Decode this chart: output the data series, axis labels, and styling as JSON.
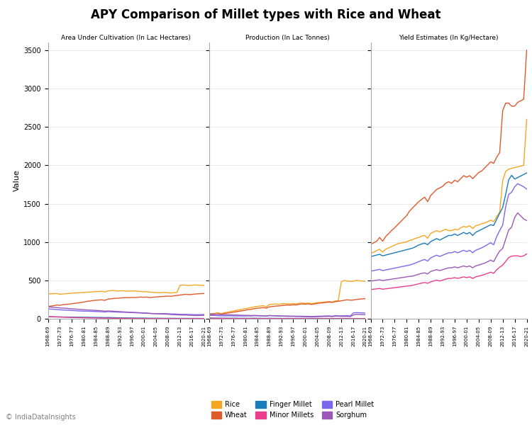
{
  "title": "APY Comparison of Millet types with Rice and Wheat",
  "subtitle_left": "Area Under Cultivation (In Lac Hectares)",
  "subtitle_mid": "Production (In Lac Tonnes)",
  "subtitle_right": "Yield Estimates (In Kg/Hectare)",
  "ylabel": "Value",
  "copyright": "© IndiaDataInsights",
  "series_colors": {
    "Rice": "#F5A623",
    "Wheat": "#E05A2B",
    "Finger Millet": "#1A7BB9",
    "Minor Millets": "#E83E8C",
    "Pearl Millet": "#7B68EE",
    "Sorghum": "#9B59B6"
  },
  "area": {
    "Rice": [
      323,
      325,
      328,
      328,
      319,
      323,
      327,
      330,
      333,
      336,
      339,
      341,
      343,
      346,
      348,
      351,
      354,
      356,
      358,
      349,
      363,
      366,
      369,
      361,
      363,
      365,
      361,
      359,
      363,
      361,
      359,
      355,
      351,
      353,
      347,
      345,
      341,
      339,
      341,
      343,
      339,
      336,
      341,
      343,
      435,
      441,
      437,
      433,
      436,
      441,
      438,
      436,
      434
    ],
    "Wheat": [
      160,
      165,
      171,
      179,
      175,
      183,
      187,
      191,
      197,
      201,
      206,
      212,
      218,
      227,
      231,
      237,
      241,
      244,
      246,
      240,
      255,
      260,
      265,
      267,
      270,
      274,
      276,
      274,
      278,
      276,
      280,
      283,
      280,
      283,
      276,
      280,
      285,
      287,
      289,
      292,
      295,
      293,
      299,
      303,
      309,
      314,
      319,
      315,
      317,
      322,
      325,
      327,
      329
    ],
    "Finger Millet": [
      26,
      25,
      24,
      24,
      24,
      23,
      22,
      22,
      21,
      21,
      20,
      20,
      19,
      19,
      18,
      18,
      17,
      17,
      16,
      15,
      16,
      15,
      14,
      13,
      12,
      11,
      11,
      10,
      10,
      9,
      9,
      9,
      9,
      8,
      7,
      7,
      7,
      7,
      6,
      6,
      6,
      6,
      6,
      5,
      5,
      5,
      5,
      5,
      5,
      5,
      5,
      4,
      4
    ],
    "Minor Millets": [
      30,
      28,
      26,
      24,
      22,
      21,
      20,
      18,
      17,
      16,
      15,
      14,
      13,
      12,
      11,
      10,
      9,
      9,
      8,
      8,
      8,
      7,
      7,
      6,
      6,
      5,
      5,
      5,
      4,
      4,
      4,
      3,
      3,
      3,
      3,
      3,
      3,
      3,
      2,
      2,
      2,
      2,
      2,
      2,
      2,
      2,
      2,
      2,
      2,
      2,
      2,
      2,
      2
    ],
    "Pearl Millet": [
      128,
      126,
      123,
      119,
      117,
      114,
      112,
      110,
      108,
      105,
      103,
      101,
      99,
      99,
      97,
      96,
      94,
      93,
      91,
      88,
      93,
      91,
      89,
      87,
      86,
      84,
      84,
      82,
      80,
      79,
      77,
      75,
      73,
      71,
      69,
      67,
      67,
      65,
      67,
      67,
      65,
      63,
      62,
      60,
      58,
      58,
      58,
      56,
      55,
      53,
      53,
      54,
      56
    ],
    "Sorghum": [
      155,
      152,
      149,
      146,
      141,
      139,
      137,
      132,
      130,
      127,
      124,
      121,
      118,
      115,
      113,
      111,
      109,
      106,
      104,
      99,
      102,
      100,
      98,
      95,
      93,
      90,
      88,
      86,
      84,
      82,
      80,
      78,
      76,
      74,
      70,
      68,
      66,
      64,
      62,
      60,
      59,
      55,
      53,
      51,
      49,
      48,
      48,
      46,
      44,
      42,
      42,
      43,
      44
    ]
  },
  "production": {
    "Rice": [
      60,
      65,
      72,
      79,
      65,
      79,
      85,
      94,
      100,
      109,
      115,
      124,
      131,
      140,
      146,
      155,
      161,
      165,
      170,
      156,
      184,
      188,
      193,
      188,
      193,
      198,
      194,
      192,
      198,
      194,
      201,
      205,
      200,
      205,
      195,
      204,
      210,
      212,
      216,
      222,
      224,
      218,
      232,
      236,
      480,
      500,
      492,
      487,
      490,
      500,
      495,
      491,
      489
    ],
    "Wheat": [
      45,
      50,
      57,
      65,
      59,
      68,
      73,
      79,
      84,
      92,
      98,
      104,
      110,
      119,
      124,
      131,
      137,
      140,
      146,
      138,
      155,
      159,
      165,
      167,
      171,
      175,
      179,
      177,
      183,
      180,
      188,
      194,
      190,
      194,
      187,
      192,
      200,
      204,
      208,
      213,
      217,
      213,
      223,
      228,
      234,
      241,
      247,
      242,
      244,
      251,
      255,
      259,
      263
    ],
    "Finger Millet": [
      10,
      9,
      8,
      8,
      7,
      7,
      7,
      7,
      7,
      7,
      6,
      6,
      6,
      6,
      6,
      7,
      6,
      6,
      5,
      5,
      6,
      6,
      5,
      5,
      5,
      4,
      5,
      4,
      4,
      4,
      4,
      4,
      4,
      4,
      3,
      4,
      4,
      3,
      3,
      4,
      3,
      3,
      4,
      4,
      4,
      4,
      4,
      3,
      3,
      3,
      3,
      3,
      3
    ],
    "Minor Millets": [
      5,
      5,
      4,
      4,
      4,
      4,
      3,
      3,
      3,
      3,
      3,
      3,
      2,
      2,
      2,
      2,
      2,
      2,
      2,
      2,
      2,
      2,
      2,
      1,
      1,
      1,
      1,
      1,
      1,
      1,
      1,
      1,
      1,
      1,
      1,
      1,
      1,
      1,
      1,
      1,
      1,
      1,
      1,
      1,
      1,
      1,
      1,
      1,
      1,
      1,
      1,
      1,
      1
    ],
    "Pearl Millet": [
      45,
      44,
      42,
      40,
      38,
      38,
      37,
      39,
      37,
      37,
      36,
      36,
      36,
      38,
      36,
      40,
      38,
      38,
      36,
      34,
      42,
      40,
      39,
      37,
      37,
      35,
      36,
      34,
      35,
      33,
      33,
      33,
      31,
      31,
      29,
      31,
      33,
      33,
      35,
      37,
      37,
      33,
      41,
      38,
      38,
      38,
      41,
      36,
      75,
      80,
      78,
      76,
      74
    ],
    "Sorghum": [
      65,
      63,
      60,
      57,
      54,
      54,
      51,
      51,
      49,
      49,
      47,
      45,
      44,
      44,
      42,
      44,
      42,
      40,
      38,
      36,
      42,
      40,
      38,
      36,
      35,
      33,
      32,
      31,
      31,
      29,
      29,
      27,
      27,
      25,
      23,
      25,
      27,
      27,
      29,
      31,
      31,
      27,
      35,
      33,
      31,
      31,
      31,
      27,
      48,
      58,
      56,
      54,
      53
    ]
  },
  "yield": {
    "Rice": [
      850,
      868,
      887,
      906,
      868,
      906,
      924,
      941,
      959,
      977,
      986,
      994,
      1003,
      1021,
      1030,
      1049,
      1058,
      1077,
      1086,
      1049,
      1113,
      1131,
      1149,
      1131,
      1149,
      1167,
      1149,
      1149,
      1167,
      1158,
      1185,
      1203,
      1194,
      1212,
      1176,
      1212,
      1221,
      1239,
      1248,
      1266,
      1284,
      1266,
      1330,
      1388,
      1800,
      1920,
      1950,
      1960,
      1970,
      1980,
      1990,
      2000,
      2600
    ],
    "Wheat": [
      970,
      990,
      1010,
      1060,
      1010,
      1070,
      1110,
      1150,
      1185,
      1225,
      1265,
      1305,
      1345,
      1405,
      1445,
      1485,
      1525,
      1555,
      1585,
      1525,
      1605,
      1645,
      1685,
      1705,
      1725,
      1765,
      1785,
      1765,
      1805,
      1785,
      1825,
      1865,
      1845,
      1865,
      1825,
      1865,
      1905,
      1925,
      1965,
      2005,
      2045,
      2025,
      2105,
      2165,
      2710,
      2810,
      2810,
      2770,
      2770,
      2820,
      2840,
      2860,
      3500
    ],
    "Finger Millet": [
      810,
      820,
      830,
      840,
      820,
      830,
      840,
      850,
      860,
      870,
      880,
      890,
      900,
      910,
      920,
      940,
      960,
      975,
      985,
      965,
      1005,
      1025,
      1045,
      1025,
      1045,
      1065,
      1085,
      1085,
      1105,
      1085,
      1105,
      1125,
      1105,
      1125,
      1085,
      1125,
      1145,
      1165,
      1185,
      1205,
      1225,
      1215,
      1295,
      1375,
      1450,
      1620,
      1810,
      1870,
      1820,
      1840,
      1860,
      1880,
      1900
    ],
    "Minor Millets": [
      380,
      385,
      390,
      395,
      385,
      390,
      395,
      400,
      405,
      410,
      415,
      420,
      425,
      430,
      435,
      445,
      455,
      465,
      472,
      462,
      480,
      492,
      504,
      492,
      504,
      516,
      526,
      526,
      536,
      526,
      536,
      546,
      536,
      546,
      526,
      546,
      556,
      566,
      578,
      592,
      607,
      592,
      638,
      672,
      700,
      746,
      798,
      816,
      820,
      820,
      810,
      820,
      845
    ],
    "Pearl Millet": [
      620,
      628,
      636,
      644,
      628,
      636,
      644,
      652,
      660,
      668,
      676,
      684,
      692,
      700,
      712,
      728,
      744,
      760,
      772,
      752,
      792,
      812,
      828,
      812,
      828,
      844,
      860,
      860,
      876,
      860,
      876,
      892,
      876,
      892,
      860,
      892,
      908,
      924,
      944,
      968,
      992,
      964,
      1072,
      1148,
      1220,
      1460,
      1620,
      1650,
      1720,
      1760,
      1740,
      1720,
      1690
    ],
    "Sorghum": [
      490,
      496,
      502,
      508,
      498,
      504,
      510,
      516,
      522,
      528,
      534,
      540,
      546,
      552,
      556,
      568,
      580,
      592,
      598,
      584,
      616,
      628,
      640,
      628,
      640,
      652,
      664,
      664,
      676,
      664,
      676,
      688,
      676,
      688,
      664,
      688,
      700,
      712,
      724,
      744,
      764,
      744,
      818,
      882,
      916,
      1036,
      1156,
      1196,
      1320,
      1380,
      1340,
      1300,
      1280
    ]
  },
  "xtick_labels": [
    "1968-69",
    "1972-73",
    "1976-77",
    "1980-81",
    "1984-85",
    "1988-89",
    "1992-93",
    "1996-97",
    "2000-01",
    "2004-05",
    "2008-09",
    "2012-13",
    "2016-17",
    "2020-21"
  ],
  "xtick_positions": [
    0,
    4,
    8,
    12,
    16,
    20,
    24,
    28,
    32,
    36,
    40,
    44,
    48,
    52
  ],
  "ylim": [
    0,
    3600
  ],
  "yticks": [
    0,
    500,
    1000,
    1500,
    2000,
    2500,
    3000,
    3500
  ]
}
